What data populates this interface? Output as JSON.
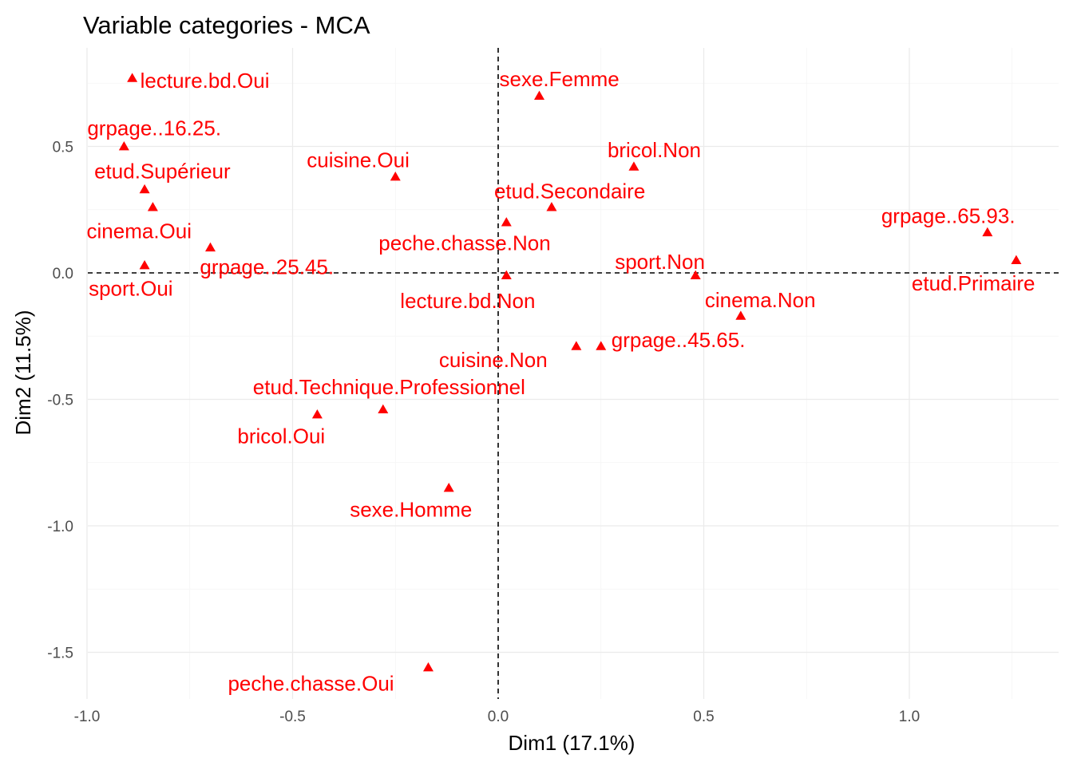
{
  "chart_data": {
    "type": "scatter",
    "title": "Variable categories - MCA",
    "xlabel": "Dim1 (17.1%)",
    "ylabel": "Dim2 (11.5%)",
    "xlim": [
      -1.0,
      1.4
    ],
    "ylim": [
      -1.7,
      0.88
    ],
    "x_ticks": [
      -1.0,
      -0.5,
      0.0,
      0.5,
      1.0
    ],
    "x_tick_labels": [
      "-1.0",
      "-0.5",
      "0.0",
      "0.5",
      "1.0"
    ],
    "y_ticks": [
      -1.5,
      -1.0,
      -0.5,
      0.0,
      0.5
    ],
    "y_tick_labels": [
      "-1.5",
      "-1.0",
      "-0.5",
      "0.0",
      "0.5"
    ],
    "grid": true,
    "reference_lines": {
      "x": 0,
      "y": 0,
      "style": "dashed"
    },
    "marker": "triangle",
    "color": "#ff0000",
    "points": [
      {
        "label": "lecture.bd.Oui",
        "x": -0.89,
        "y": 0.77
      },
      {
        "label": "sexe.Femme",
        "x": 0.1,
        "y": 0.7
      },
      {
        "label": "grpage..16.25.",
        "x": -0.91,
        "y": 0.5
      },
      {
        "label": "bricol.Non",
        "x": 0.33,
        "y": 0.42
      },
      {
        "label": "cuisine.Oui",
        "x": -0.25,
        "y": 0.38
      },
      {
        "label": "etud.Supérieur",
        "x": -0.86,
        "y": 0.33
      },
      {
        "label": "etud.Secondaire",
        "x": 0.13,
        "y": 0.26
      },
      {
        "label": "grpage..65.93.",
        "x": 1.19,
        "y": 0.16
      },
      {
        "label": "cinema.Oui",
        "x": -0.7,
        "y": 0.1
      },
      {
        "label": "peche.chasse.Non",
        "x": 0.02,
        "y": 0.2
      },
      {
        "label": "grpage..25.45.",
        "x": -0.84,
        "y": 0.26
      },
      {
        "label": "sport.Non",
        "x": 0.48,
        "y": -0.01
      },
      {
        "label": "sport.Oui",
        "x": -0.86,
        "y": 0.03
      },
      {
        "label": "etud.Primaire",
        "x": 1.26,
        "y": 0.05
      },
      {
        "label": "lecture.bd.Non",
        "x": 0.02,
        "y": -0.01
      },
      {
        "label": "cinema.Non",
        "x": 0.59,
        "y": -0.17
      },
      {
        "label": "grpage..45.65.",
        "x": 0.25,
        "y": -0.29
      },
      {
        "label": "cuisine.Non",
        "x": 0.19,
        "y": -0.29
      },
      {
        "label": "etud.Technique.Professionnel",
        "x": -0.28,
        "y": -0.54
      },
      {
        "label": "bricol.Oui",
        "x": -0.44,
        "y": -0.56
      },
      {
        "label": "sexe.Homme",
        "x": -0.12,
        "y": -0.85
      },
      {
        "label": "peche.chasse.Oui",
        "x": -0.17,
        "y": -1.56
      }
    ]
  }
}
